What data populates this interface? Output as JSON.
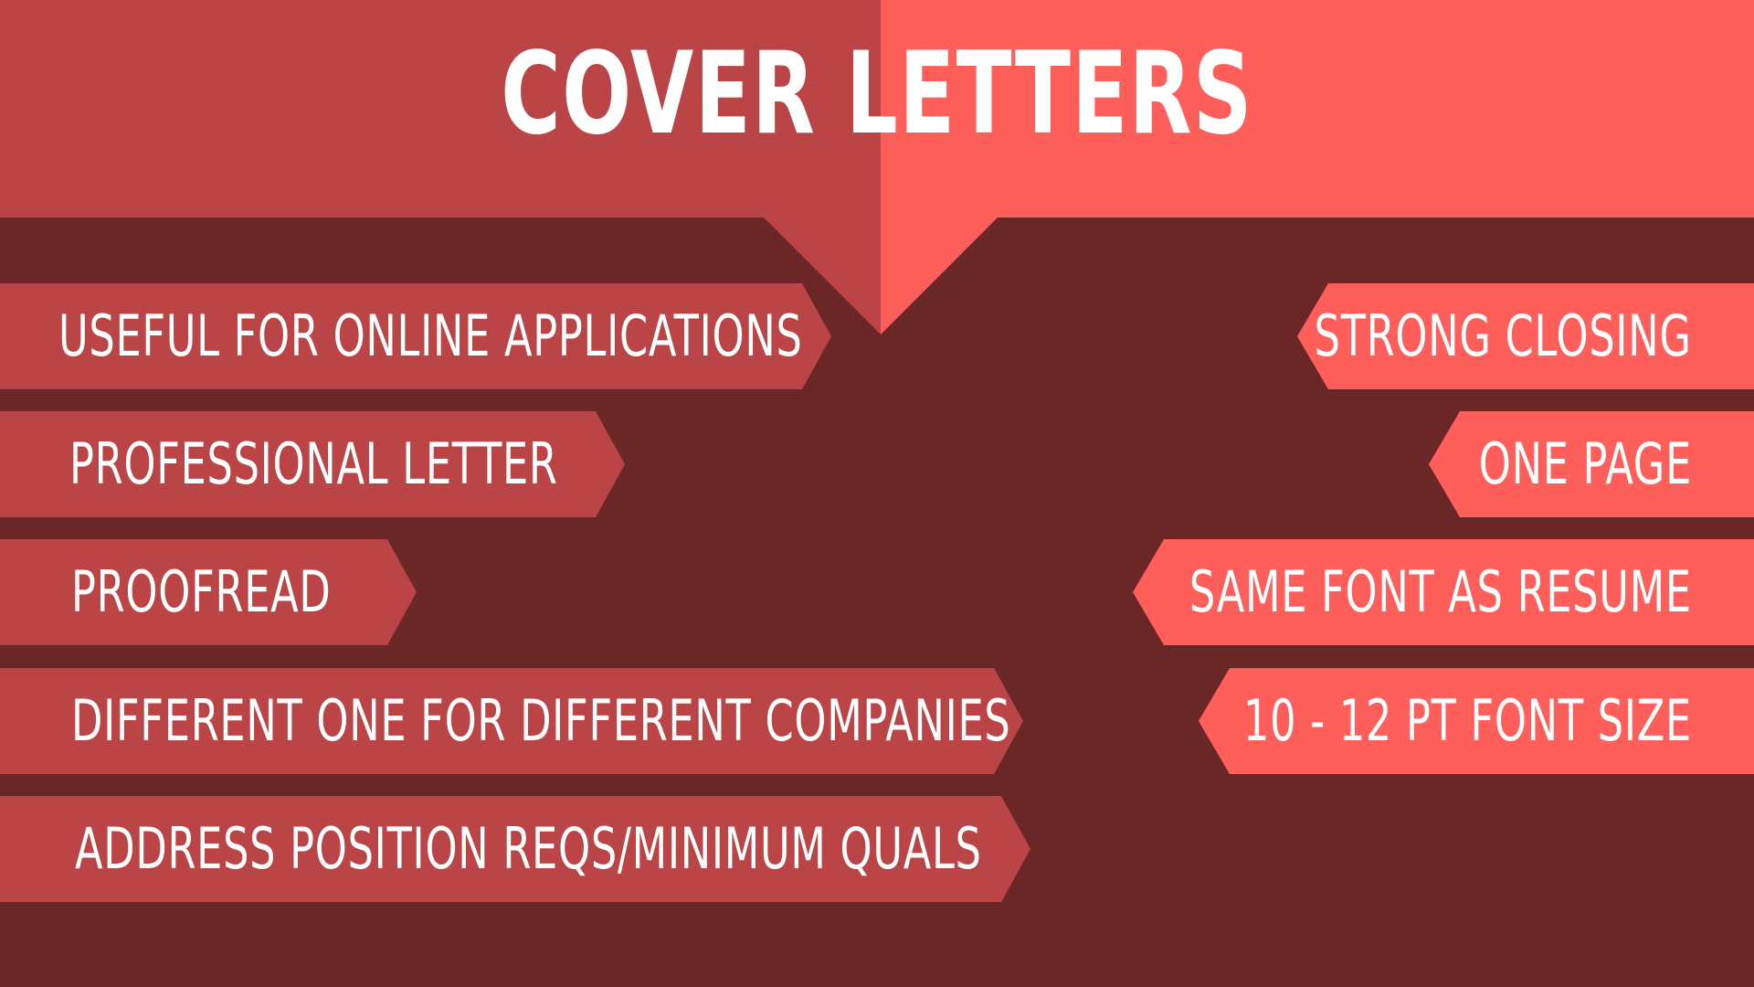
{
  "title": "COVER LETTERS",
  "colors": {
    "background": "#6b2628",
    "left_panel": "#bb4546",
    "right_panel": "#ff5f5b",
    "text": "#ffffff"
  },
  "left_items": [
    "USEFUL FOR ONLINE APPLICATIONS",
    "PROFESSIONAL LETTER",
    "PROOFREAD",
    "DIFFERENT ONE FOR DIFFERENT COMPANIES",
    "ADDRESS POSITION REQS/MINIMUM QUALS"
  ],
  "right_items": [
    "STRONG CLOSING",
    "ONE PAGE",
    "SAME FONT AS RESUME",
    "10 - 12 PT FONT SIZE"
  ]
}
